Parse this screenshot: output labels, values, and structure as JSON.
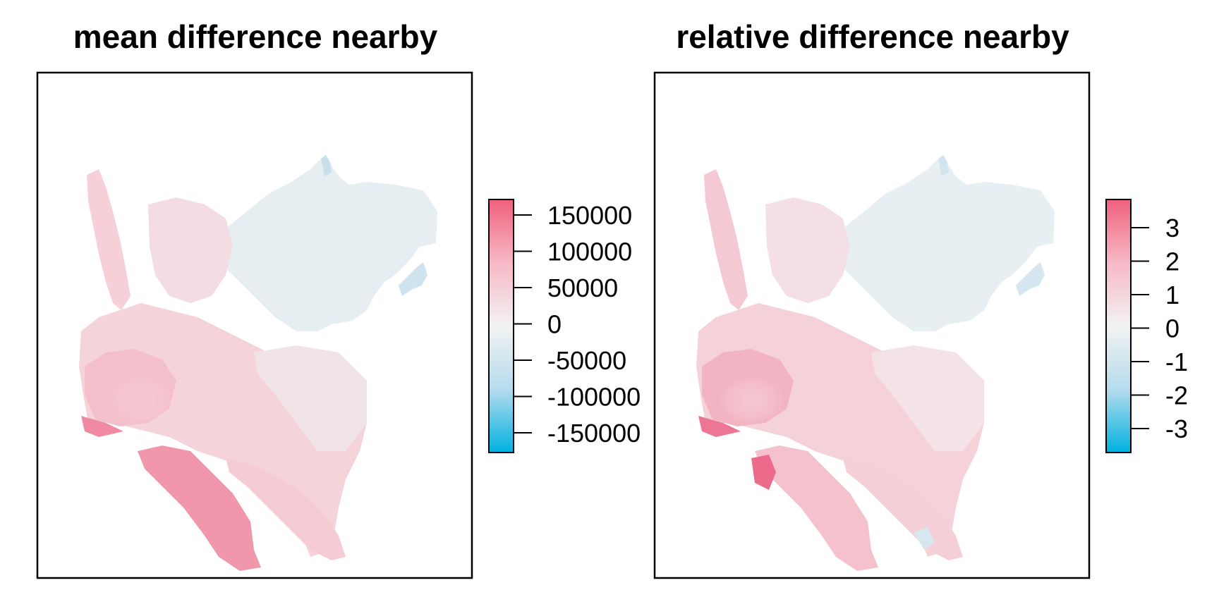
{
  "panels": [
    {
      "title": "mean difference nearby",
      "legend": {
        "ticks": [
          "150000",
          "100000",
          "50000",
          "0",
          "-50000",
          "-100000",
          "-150000"
        ]
      }
    },
    {
      "title": "relative difference nearby",
      "legend": {
        "ticks": [
          "3",
          "2",
          "1",
          "0",
          "-1",
          "-2",
          "-3"
        ]
      }
    }
  ],
  "colors": {
    "high": "#f0607e",
    "mid_high": "#f7b9c6",
    "zero": "#f2f2f2",
    "mid_low": "#b5dced",
    "low": "#00b1e0",
    "neutral_region": "#e4eef3"
  }
}
